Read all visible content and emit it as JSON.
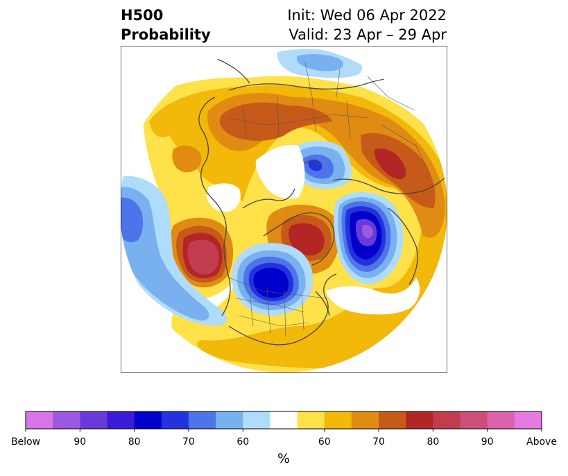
{
  "title": {
    "left_line1": "H500",
    "left_line2": "Probability",
    "right_line1": "Init: Wed 06 Apr 2022",
    "right_line2": "Valid: 23 Apr – 29 Apr"
  },
  "colorbar": {
    "unit_label": "%",
    "tick_labels": [
      "Below",
      "90",
      "80",
      "70",
      "60",
      "60",
      "70",
      "80",
      "90",
      "Above"
    ],
    "colors": [
      "#d775e8",
      "#9b58e0",
      "#6a3ad9",
      "#3a1bd6",
      "#0000cc",
      "#2233dd",
      "#4d74e8",
      "#79b0f0",
      "#aedcfa",
      "#ffffff",
      "#ffe14a",
      "#f2b80a",
      "#e08b12",
      "#c65a18",
      "#b22626",
      "#c23b4f",
      "#cc4f7a",
      "#db62ad",
      "#e67ae0"
    ]
  },
  "map": {
    "projection": "north-polar-stereographic",
    "colors": {
      "above_60": "#ffe14a",
      "above_65": "#f2b80a",
      "above_70": "#e08b12",
      "above_75": "#c65a18",
      "above_80": "#b22626",
      "above_85": "#c23b4f",
      "below_60": "#aedcfa",
      "below_65": "#79b0f0",
      "below_70": "#4d74e8",
      "below_75": "#2233dd",
      "below_80": "#0000cc",
      "below_85": "#6a3ad9"
    }
  }
}
